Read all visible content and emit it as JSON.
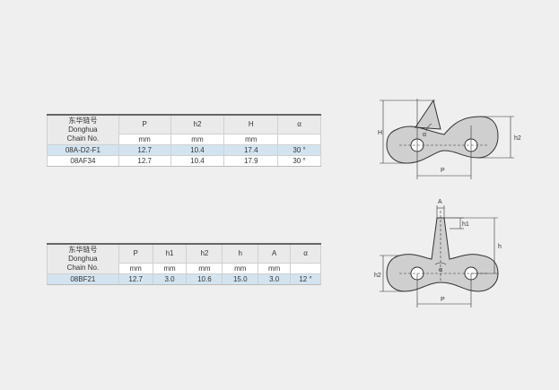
{
  "table1": {
    "label_lines": [
      "东华链号",
      "Donghua",
      "Chain No."
    ],
    "headers": [
      "P",
      "h2",
      "H",
      "α"
    ],
    "units": [
      "mm",
      "mm",
      "mm",
      ""
    ],
    "rows": [
      {
        "chain_no": "08A-D2-F1",
        "values": [
          "12.7",
          "10.4",
          "17.4",
          "30 °"
        ]
      },
      {
        "chain_no": "08AF34",
        "values": [
          "12.7",
          "10.4",
          "17.9",
          "30 °"
        ]
      }
    ]
  },
  "table2": {
    "label_lines": [
      "东华链号",
      "Donghua",
      "Chain No."
    ],
    "headers": [
      "P",
      "h1",
      "h2",
      "h",
      "A",
      "α"
    ],
    "units": [
      "mm",
      "mm",
      "mm",
      "mm",
      "mm",
      ""
    ],
    "rows": [
      {
        "chain_no": "08BF21",
        "values": [
          "12.7",
          "3.0",
          "10.6",
          "15.0",
          "3.0",
          "12 °"
        ]
      }
    ]
  },
  "diagram1": {
    "labels": {
      "H": "H",
      "h2": "h2",
      "alpha": "α",
      "P": "P"
    }
  },
  "diagram2": {
    "labels": {
      "A": "A",
      "h1": "h1",
      "h": "h",
      "h2": "h2",
      "alpha": "α",
      "P": "P"
    }
  },
  "colors": {
    "background": "#efefef",
    "row_highlight": "#d3e4f0",
    "header_bg": "#eaeaea",
    "plate_fill": "#cfcfcf"
  }
}
